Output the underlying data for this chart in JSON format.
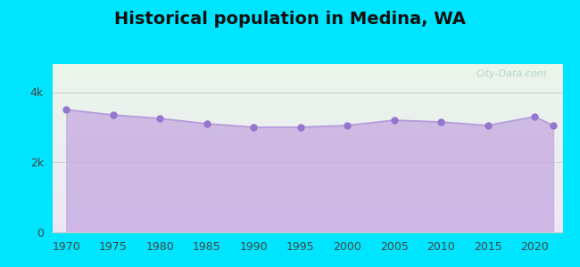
{
  "title": "Historical population in Medina, WA",
  "years": [
    1970,
    1975,
    1980,
    1985,
    1990,
    1995,
    2000,
    2005,
    2010,
    2015,
    2020,
    2022
  ],
  "population": [
    3500,
    3350,
    3250,
    3100,
    3000,
    3000,
    3050,
    3200,
    3150,
    3050,
    3300,
    3050
  ],
  "line_color": "#b39ddb",
  "fill_color": "#c5a8e0",
  "fill_alpha": 0.75,
  "marker_color": "#9575cd",
  "marker_size": 5,
  "outer_bg_color": "#00e5ff",
  "plot_bg_top": "#eaf6ea",
  "plot_bg_bottom": "#ede7f6",
  "title_fontsize": 14,
  "yticks": [
    0,
    2000,
    4000
  ],
  "ytick_labels": [
    "0",
    "2k",
    "4k"
  ],
  "ylim": [
    0,
    4800
  ],
  "xlim": [
    1968.5,
    2023
  ],
  "xticks": [
    1970,
    1975,
    1980,
    1985,
    1990,
    1995,
    2000,
    2005,
    2010,
    2015,
    2020
  ],
  "watermark": "City-Data.com"
}
